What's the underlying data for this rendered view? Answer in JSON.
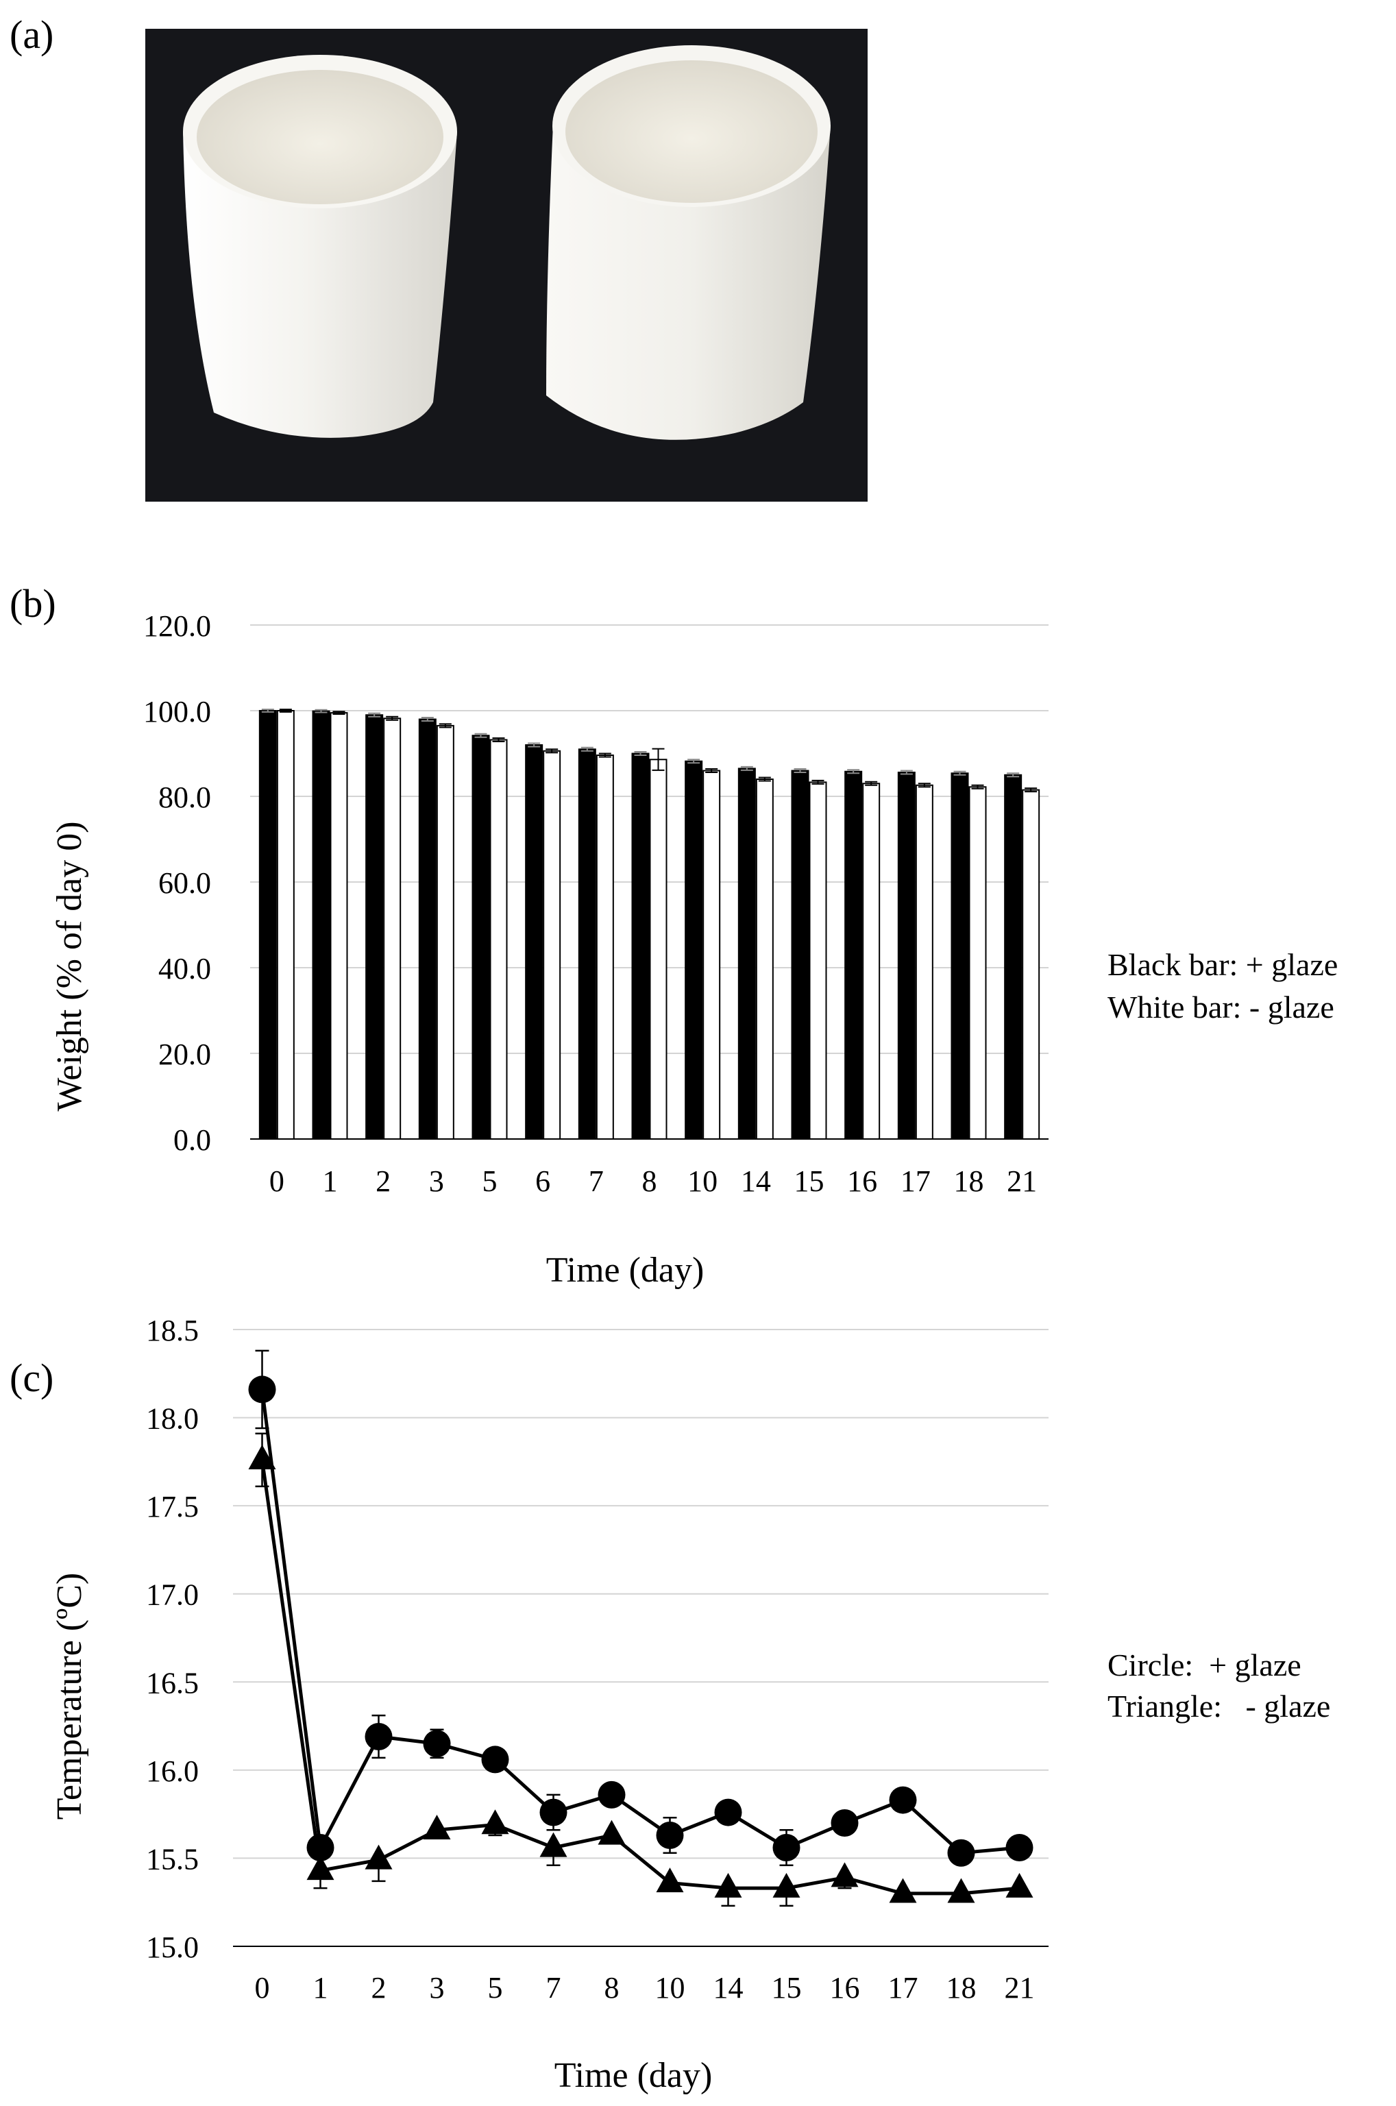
{
  "panels": {
    "a_label": "(a)",
    "b_label": "(b)",
    "c_label": "(c)"
  },
  "photo": {
    "background_color": "#15161a",
    "cup_color": "#f3f2ee",
    "cup_shadow_color": "#d9d7d0",
    "cup_inner_color": "#eae7dd"
  },
  "chart_data": [
    {
      "type": "bar",
      "title": "",
      "xlabel": "Time (day)",
      "ylabel": "Weight (% of day 0)",
      "ylim": [
        0,
        120
      ],
      "yticks": [
        "0.0",
        "20.0",
        "40.0",
        "60.0",
        "80.0",
        "100.0",
        "120.0"
      ],
      "grid": true,
      "categories": [
        "0",
        "1",
        "2",
        "3",
        "5",
        "6",
        "7",
        "8",
        "10",
        "14",
        "15",
        "16",
        "17",
        "18",
        "21"
      ],
      "series": [
        {
          "name": "+ glaze",
          "color": "#000000",
          "values": [
            100.0,
            99.9,
            99.0,
            98.0,
            94.2,
            92.0,
            91.0,
            90.0,
            88.2,
            86.5,
            86.0,
            85.8,
            85.6,
            85.4,
            85.0
          ],
          "errors": [
            0.3,
            0.3,
            0.4,
            0.4,
            0.4,
            0.4,
            0.4,
            0.4,
            0.4,
            0.4,
            0.4,
            0.4,
            0.4,
            0.4,
            0.4
          ]
        },
        {
          "name": "- glaze",
          "color": "#ffffff",
          "values": [
            100.0,
            99.5,
            98.2,
            96.5,
            93.2,
            90.6,
            89.6,
            88.6,
            86.0,
            84.0,
            83.3,
            83.0,
            82.6,
            82.2,
            81.5
          ],
          "errors": [
            0.3,
            0.3,
            0.4,
            0.4,
            0.4,
            0.4,
            0.4,
            2.5,
            0.4,
            0.4,
            0.4,
            0.4,
            0.4,
            0.4,
            0.4
          ]
        }
      ],
      "legend": [
        "Black bar: + glaze",
        "White bar: - glaze"
      ],
      "legend_position": "right"
    },
    {
      "type": "line",
      "title": "",
      "xlabel": "Time (day)",
      "ylabel": "Temperature  (ºC)",
      "ylim": [
        15.0,
        18.5
      ],
      "yticks": [
        "15.0",
        "15.5",
        "16.0",
        "16.5",
        "17.0",
        "17.5",
        "18.0",
        "18.5"
      ],
      "grid": true,
      "categories": [
        "0",
        "1",
        "2",
        "3",
        "5",
        "7",
        "8",
        "10",
        "14",
        "15",
        "16",
        "17",
        "18",
        "21"
      ],
      "series": [
        {
          "name": "+ glaze",
          "marker": "circle",
          "values": [
            18.16,
            15.56,
            16.19,
            16.15,
            16.06,
            15.76,
            15.86,
            15.63,
            15.76,
            15.56,
            15.7,
            15.83,
            15.53,
            15.56
          ],
          "errors": [
            0.22,
            0.05,
            0.12,
            0.08,
            0.03,
            0.1,
            0.03,
            0.1,
            0.03,
            0.1,
            0.03,
            0.03,
            0.03,
            0.03
          ]
        },
        {
          "name": "- glaze",
          "marker": "triangle",
          "values": [
            17.76,
            15.43,
            15.49,
            15.66,
            15.69,
            15.56,
            15.63,
            15.36,
            15.33,
            15.33,
            15.39,
            15.3,
            15.3,
            15.33
          ],
          "errors": [
            0.15,
            0.1,
            0.12,
            0.03,
            0.06,
            0.1,
            0.03,
            0.03,
            0.1,
            0.1,
            0.06,
            0.03,
            0.03,
            0.03
          ]
        }
      ],
      "legend": [
        "Circle:  + glaze",
        "Triangle:   - glaze"
      ],
      "legend_position": "right"
    }
  ]
}
